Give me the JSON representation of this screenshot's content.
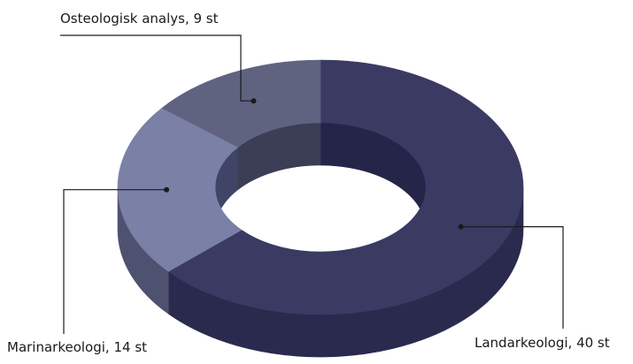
{
  "chart_data": {
    "type": "pie",
    "style": "3d-donut",
    "categories": [
      "Landarkeologi",
      "Marinarkeologi",
      "Osteologisk analys"
    ],
    "values": [
      40,
      14,
      9
    ],
    "unit": "st",
    "labels": [
      "Landarkeologi, 40 st",
      "Marinarkeologi, 14 st",
      "Osteologisk analys, 9 st"
    ],
    "colors": [
      "#3a3a63",
      "#7a80a6",
      "#5f6380"
    ],
    "side_colors": [
      "#2a2a4e",
      "#4e5170",
      "#44475f"
    ],
    "inner_colors": [
      "#25254a",
      "#404466",
      "#3b3e55"
    ],
    "label_placement": "leader-lines"
  }
}
